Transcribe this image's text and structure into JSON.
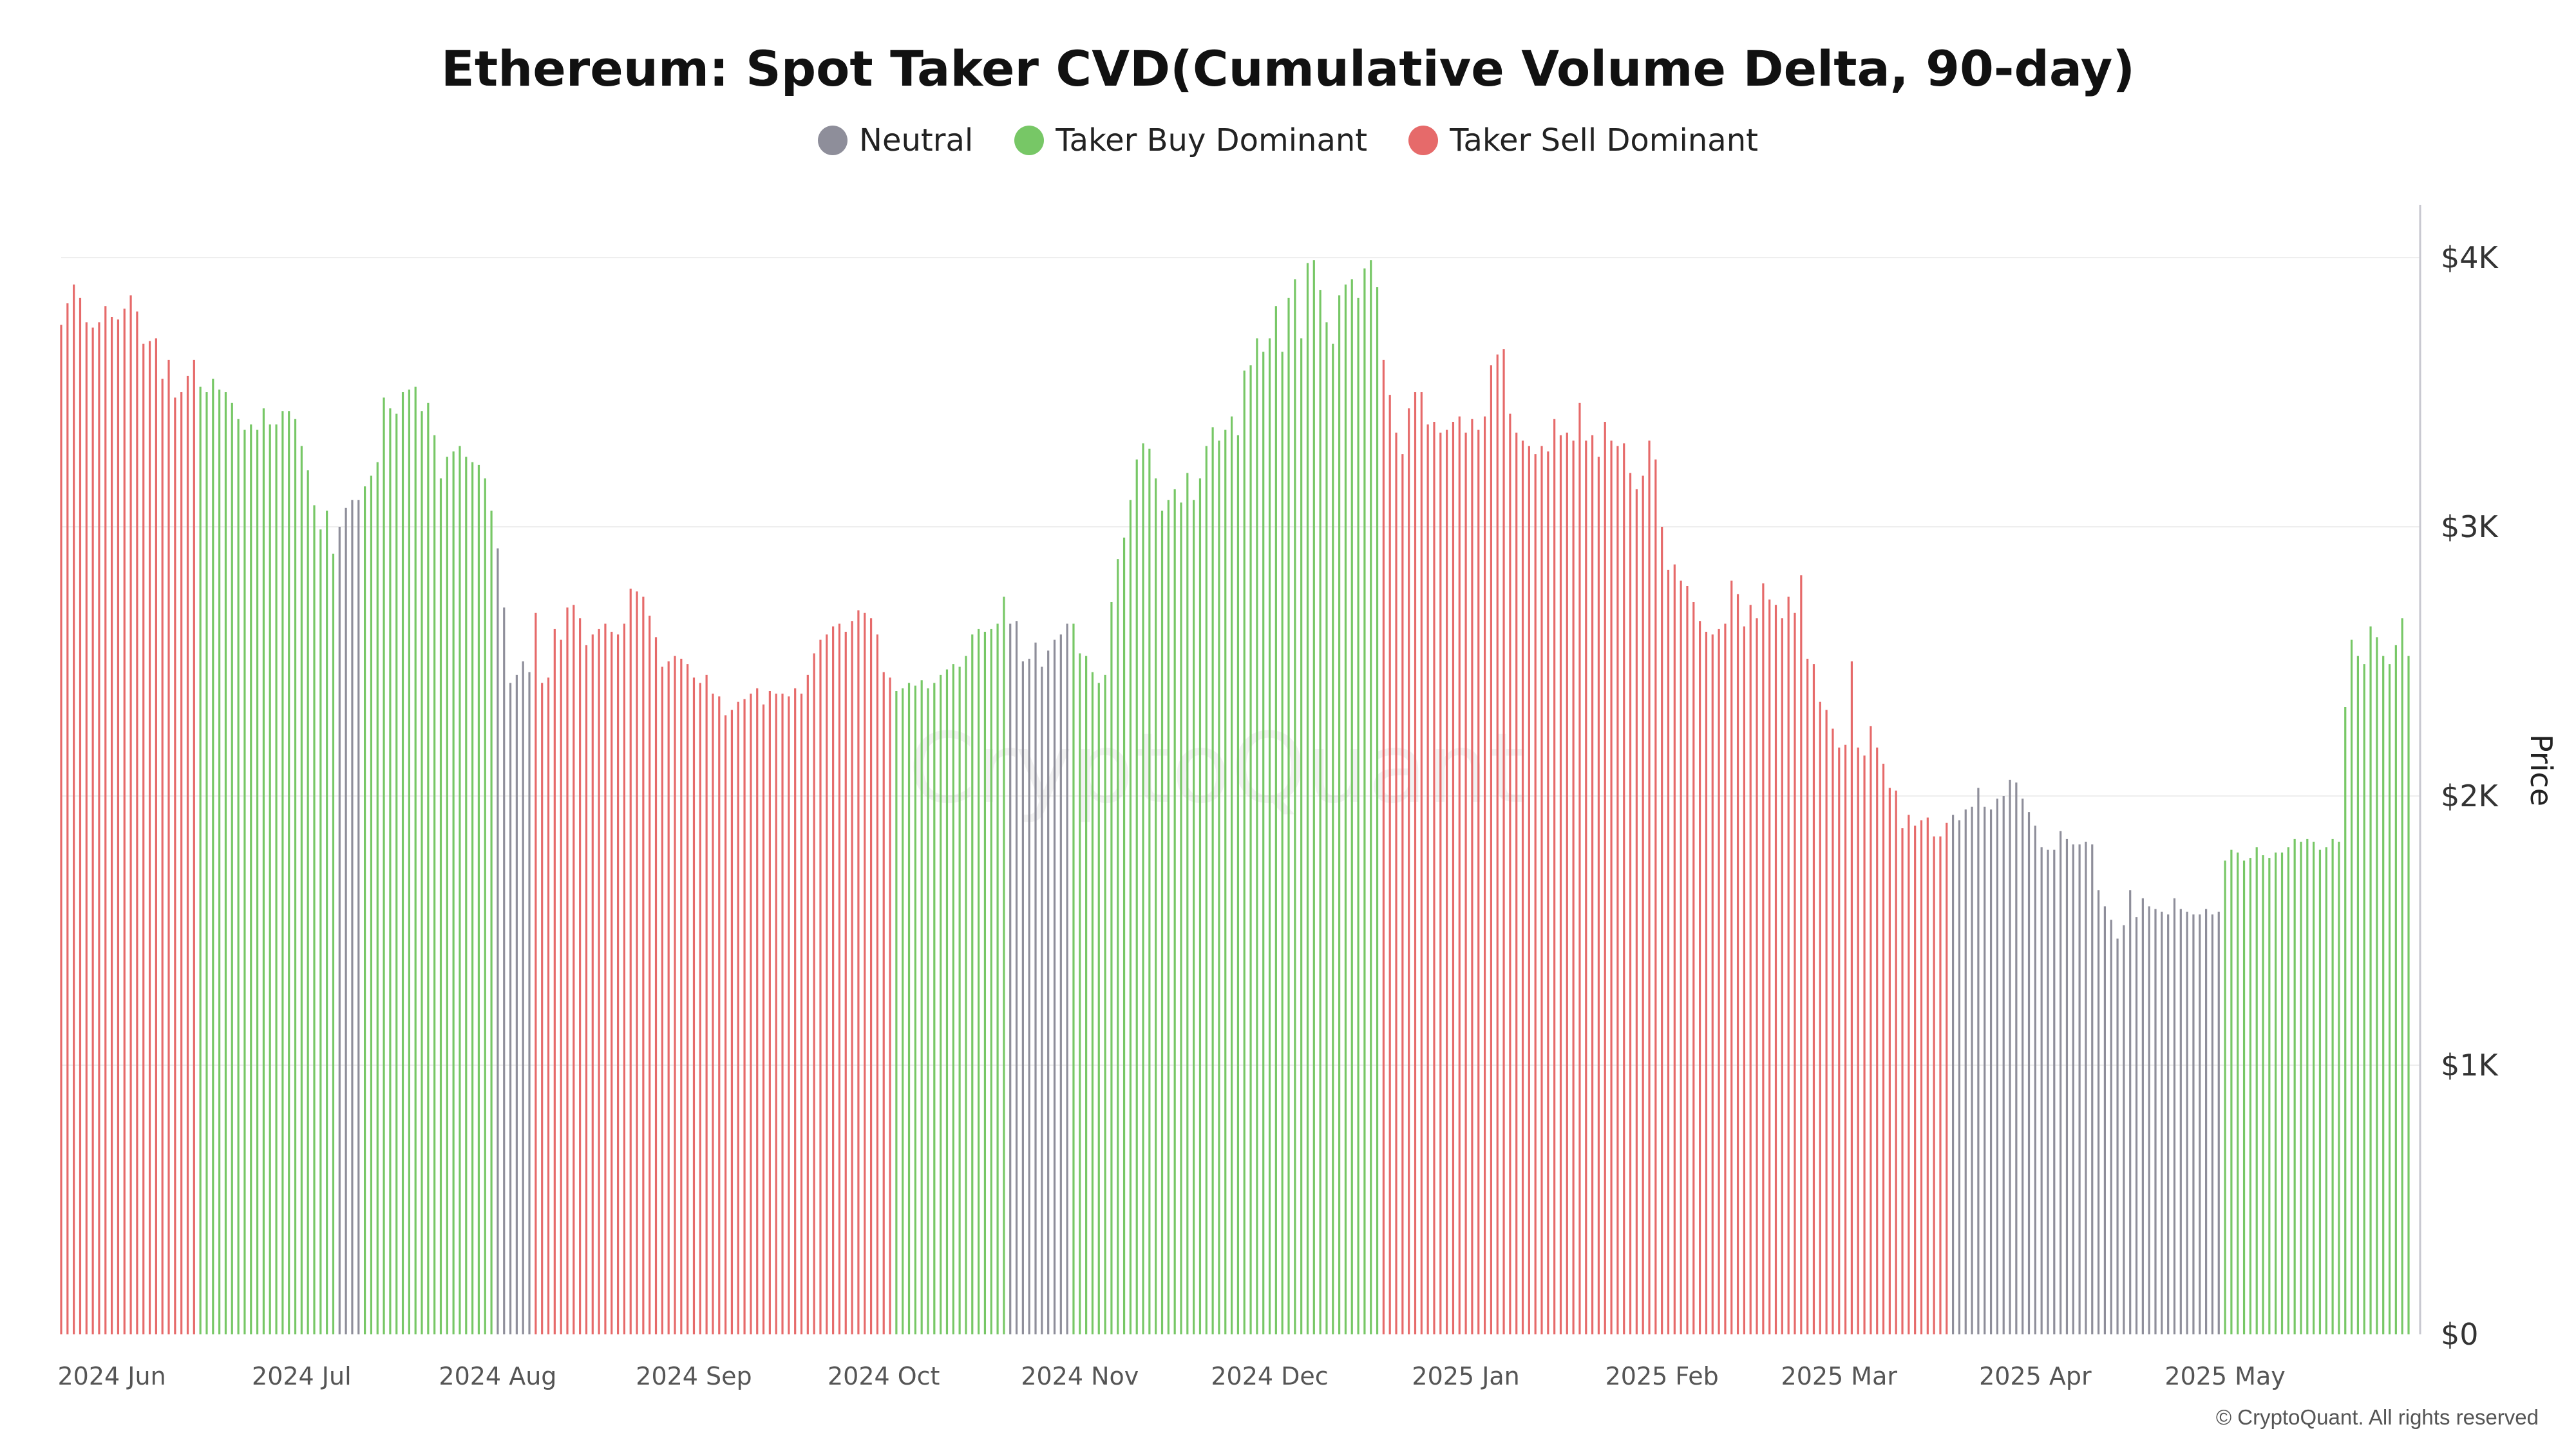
{
  "chart_data": {
    "type": "bar",
    "title": "Ethereum: Spot Taker CVD(Cumulative Volume Delta, 90-day)",
    "ylabel": "Price",
    "ylim": [
      0,
      4000
    ],
    "yticks": [
      "$0",
      "$1K",
      "$2K",
      "$3K",
      "$4K"
    ],
    "ytick_values": [
      0,
      1000,
      2000,
      3000,
      4000
    ],
    "x_start": "2024-05-24",
    "x_end": "2025-05-30",
    "xticks": [
      {
        "label": "2024 Jun",
        "date": "2024-06-01"
      },
      {
        "label": "2024 Jul",
        "date": "2024-07-01"
      },
      {
        "label": "2024 Aug",
        "date": "2024-08-01"
      },
      {
        "label": "2024 Sep",
        "date": "2024-09-01"
      },
      {
        "label": "2024 Oct",
        "date": "2024-10-01"
      },
      {
        "label": "2024 Nov",
        "date": "2024-11-01"
      },
      {
        "label": "2024 Dec",
        "date": "2024-12-01"
      },
      {
        "label": "2025 Jan",
        "date": "2025-01-01"
      },
      {
        "label": "2025 Feb",
        "date": "2025-02-01"
      },
      {
        "label": "2025 Mar",
        "date": "2025-03-01"
      },
      {
        "label": "2025 Apr",
        "date": "2025-04-01"
      },
      {
        "label": "2025 May",
        "date": "2025-05-01"
      }
    ],
    "legend": [
      {
        "name": "Neutral",
        "key": "neutral",
        "color": "#8e8e9a"
      },
      {
        "name": "Taker Buy Dominant",
        "key": "buy",
        "color": "#77c766"
      },
      {
        "name": "Taker Sell Dominant",
        "key": "sell",
        "color": "#e66a6a"
      }
    ],
    "legend_position": "top-center",
    "grid": true,
    "segments": [
      {
        "start": "2024-05-24",
        "end": "2024-06-14",
        "state": "sell",
        "values": [
          3750,
          3830,
          3900,
          3850,
          3760,
          3740,
          3760,
          3820,
          3780,
          3770,
          3810,
          3860,
          3800,
          3680,
          3690,
          3700,
          3550,
          3620,
          3480,
          3500,
          3560,
          3620
        ]
      },
      {
        "start": "2024-06-15",
        "end": "2024-07-06",
        "state": "buy",
        "values": [
          3520,
          3500,
          3550,
          3510,
          3500,
          3460,
          3400,
          3360,
          3380,
          3360,
          3440,
          3380,
          3380,
          3430,
          3430,
          3400,
          3300,
          3210,
          3080,
          2990,
          3060,
          2900
        ]
      },
      {
        "start": "2024-07-07",
        "end": "2024-07-10",
        "state": "neutral",
        "values": [
          3000,
          3070,
          3100,
          3100
        ]
      },
      {
        "start": "2024-07-11",
        "end": "2024-07-31",
        "state": "buy",
        "values": [
          3150,
          3190,
          3240,
          3480,
          3440,
          3420,
          3500,
          3510,
          3520,
          3430,
          3460,
          3340,
          3180,
          3260,
          3280,
          3300,
          3260,
          3240,
          3230,
          3180,
          3060
        ]
      },
      {
        "start": "2024-08-01",
        "end": "2024-08-06",
        "state": "neutral",
        "values": [
          2920,
          2700,
          2420,
          2450,
          2500,
          2460
        ]
      },
      {
        "start": "2024-08-07",
        "end": "2024-08-31",
        "state": "sell",
        "values": [
          2680,
          2420,
          2440,
          2620,
          2580,
          2700,
          2710,
          2660,
          2560,
          2600,
          2620,
          2640,
          2610,
          2600,
          2640,
          2770,
          2760,
          2740,
          2670,
          2590,
          2480,
          2500,
          2520,
          2510,
          2490
        ]
      },
      {
        "start": "2024-09-01",
        "end": "2024-09-30",
        "state": "sell",
        "values": [
          2440,
          2420,
          2450,
          2380,
          2370,
          2300,
          2320,
          2350,
          2360,
          2380,
          2400,
          2340,
          2390,
          2380,
          2380,
          2370,
          2400,
          2380,
          2450,
          2530,
          2580,
          2600,
          2630,
          2640,
          2610,
          2650,
          2690,
          2680,
          2660,
          2600
        ]
      },
      {
        "start": "2024-10-01",
        "end": "2024-10-02",
        "state": "sell",
        "values": [
          2460,
          2440
        ]
      },
      {
        "start": "2024-10-03",
        "end": "2024-10-20",
        "state": "buy",
        "values": [
          2390,
          2400,
          2420,
          2410,
          2430,
          2400,
          2420,
          2450,
          2470,
          2490,
          2480,
          2520,
          2600,
          2620,
          2610,
          2620,
          2640,
          2740
        ]
      },
      {
        "start": "2024-10-21",
        "end": "2024-10-30",
        "state": "neutral",
        "values": [
          2640,
          2650,
          2500,
          2510,
          2570,
          2480,
          2540,
          2580,
          2600,
          2640
        ]
      },
      {
        "start": "2024-10-31",
        "end": "2024-11-30",
        "state": "buy",
        "values": [
          2640,
          2530,
          2520,
          2460,
          2420,
          2450,
          2720,
          2880,
          2960,
          3100,
          3250,
          3310,
          3290,
          3180,
          3060,
          3100,
          3140,
          3090,
          3200,
          3100,
          3180,
          3300,
          3370,
          3320,
          3360,
          3410,
          3340,
          3580,
          3600,
          3700,
          3650
        ]
      },
      {
        "start": "2024-12-01",
        "end": "2024-12-18",
        "state": "buy",
        "values": [
          3700,
          3820,
          3650,
          3850,
          3920,
          3700,
          3980,
          3990,
          3880,
          3760,
          3680,
          3860,
          3900,
          3920,
          3850,
          3960,
          3990,
          3890
        ]
      },
      {
        "start": "2024-12-19",
        "end": "2024-12-31",
        "state": "sell",
        "values": [
          3620,
          3490,
          3350,
          3270,
          3440,
          3500,
          3500,
          3380,
          3390,
          3350,
          3360,
          3390,
          3410
        ]
      },
      {
        "start": "2025-01-01",
        "end": "2025-01-31",
        "state": "sell",
        "values": [
          3350,
          3400,
          3360,
          3410,
          3600,
          3640,
          3660,
          3420,
          3350,
          3320,
          3300,
          3270,
          3300,
          3280,
          3400,
          3340,
          3350,
          3320,
          3460,
          3320,
          3340,
          3260,
          3390,
          3320,
          3300,
          3310,
          3200,
          3140,
          3190,
          3320,
          3250
        ]
      },
      {
        "start": "2025-02-01",
        "end": "2025-02-28",
        "state": "sell",
        "values": [
          3000,
          2840,
          2860,
          2800,
          2780,
          2720,
          2650,
          2610,
          2600,
          2620,
          2640,
          2800,
          2750,
          2630,
          2710,
          2660,
          2790,
          2730,
          2710,
          2660,
          2740,
          2680,
          2820,
          2510,
          2490,
          2350,
          2320,
          2250
        ]
      },
      {
        "start": "2025-03-01",
        "end": "2025-03-18",
        "state": "sell",
        "values": [
          2180,
          2190,
          2500,
          2180,
          2150,
          2260,
          2180,
          2120,
          2030,
          2020,
          1880,
          1930,
          1890,
          1910,
          1920,
          1850,
          1850,
          1900
        ]
      },
      {
        "start": "2025-03-19",
        "end": "2025-04-30",
        "state": "neutral",
        "values": [
          1930,
          1910,
          1950,
          1960,
          2030,
          1960,
          1950,
          1990,
          2000,
          2060,
          2050,
          1990,
          1940,
          1890,
          1810,
          1800,
          1800,
          1870,
          1840,
          1820,
          1820,
          1830,
          1820,
          1650,
          1590,
          1540,
          1470,
          1520,
          1650,
          1550,
          1620,
          1590,
          1580,
          1570,
          1560,
          1620,
          1580,
          1570,
          1560,
          1560,
          1580,
          1560,
          1570
        ]
      },
      {
        "start": "2025-05-01",
        "end": "2025-05-30",
        "state": "buy",
        "values": [
          1760,
          1800,
          1790,
          1760,
          1770,
          1810,
          1780,
          1770,
          1790,
          1790,
          1810,
          1840,
          1830,
          1840,
          1830,
          1800,
          1810,
          1840,
          1830,
          2330,
          2580,
          2520,
          2490,
          2630,
          2590,
          2520,
          2490,
          2560,
          2660,
          2520
        ]
      }
    ]
  },
  "axis": {
    "right_title": "Price"
  },
  "watermark": "CryptoQuant",
  "footer": {
    "copyright": "© CryptoQuant. All rights reserved"
  },
  "colors": {
    "gridline": "#eeeeee",
    "axis_line": "#c8c8d0",
    "tick_text": "#333333",
    "xtick_text": "#555555"
  }
}
